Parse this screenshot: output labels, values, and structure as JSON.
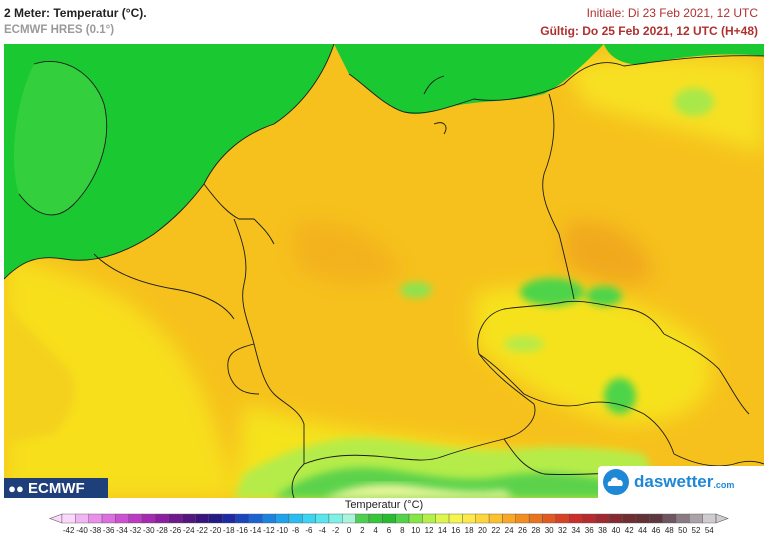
{
  "header": {
    "title": "2 Meter: Temperatur (°C).",
    "subtitle": "ECMWF HRES (0.1°)",
    "initiale": "Initiale: Di 23 Feb 2021, 12 UTC",
    "gueltig": "Gültig: Do 25 Feb 2021, 12 UTC (H+48)"
  },
  "logos": {
    "ecmwf": "ECMWF",
    "daswetter": "daswetter",
    "daswetter_domain": ".com"
  },
  "legend": {
    "title": "Temperatur (°C)",
    "ticks": [
      "-42",
      "-40",
      "-38",
      "-36",
      "-34",
      "-32",
      "-30",
      "-28",
      "-26",
      "-24",
      "-22",
      "-20",
      "-18",
      "-16",
      "-14",
      "-12",
      "-10",
      "-8",
      "-6",
      "-4",
      "-2",
      "0",
      "2",
      "4",
      "6",
      "8",
      "10",
      "12",
      "14",
      "16",
      "18",
      "20",
      "22",
      "24",
      "26",
      "28",
      "30",
      "32",
      "34",
      "36",
      "38",
      "40",
      "42",
      "44",
      "46",
      "48",
      "50",
      "52",
      "54"
    ],
    "colors": [
      "#fbd8fb",
      "#f2b5f4",
      "#e890ea",
      "#dc6fdf",
      "#cd52d2",
      "#bb3cc2",
      "#a42bb0",
      "#8c1f9f",
      "#70198d",
      "#55157f",
      "#3a147d",
      "#231a86",
      "#1d2aa2",
      "#1b45bc",
      "#1b63d1",
      "#1c84e0",
      "#21a2ea",
      "#29bdf0",
      "#3bd4f1",
      "#58e5ee",
      "#7ef0e6",
      "#a8f5dc",
      "#4fcf50",
      "#39c43e",
      "#28bb30",
      "#52d24a",
      "#86e648",
      "#b5f04a",
      "#ddf54c",
      "#f5f54e",
      "#fde94a",
      "#fdd63c",
      "#fcc12e",
      "#f8a824",
      "#f18e1f",
      "#e9741f",
      "#e15a22",
      "#d74226",
      "#cc2e2b",
      "#b72a2e",
      "#9d2a30",
      "#842b31",
      "#6f2d30",
      "#633035",
      "#5e3840",
      "#6e5560",
      "#8a7a84",
      "#aaa2a8",
      "#cfcbce"
    ]
  },
  "map_colors": {
    "sea": "#1ac832",
    "warm_land": "#f6c11d",
    "mild_land": "#f6e91c",
    "cool_land": "#4ed44a",
    "alps_snow": "#e9f5a0",
    "border": "#1a1a1a"
  }
}
